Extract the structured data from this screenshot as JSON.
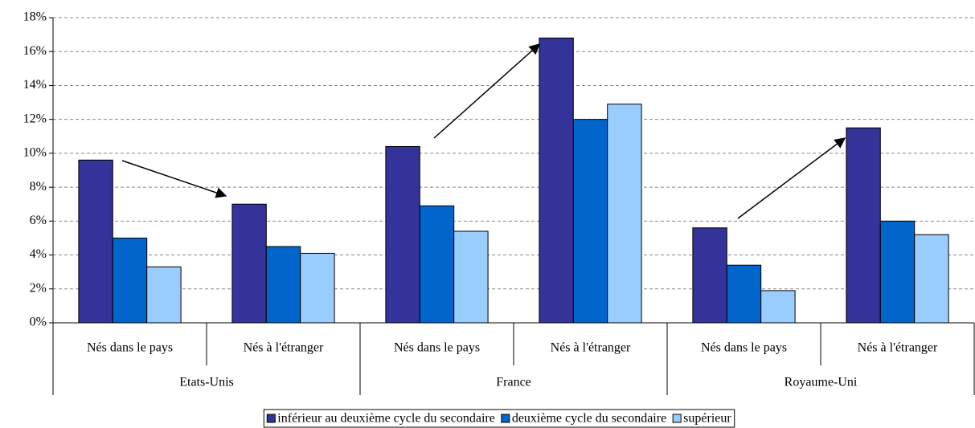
{
  "chart_data": {
    "type": "bar",
    "categories": [
      "Nés dans le pays",
      "Nés à l'étranger",
      "Nés dans le pays",
      "Nés à l'étranger",
      "Nés dans le pays",
      "Nés à l'étranger"
    ],
    "groups": [
      "Etats-Unis",
      "France",
      "Royaume-Uni"
    ],
    "series": [
      {
        "name": "inférieur au deuxième cycle du secondaire",
        "color": "#333399",
        "values": [
          9.6,
          7.0,
          10.4,
          16.8,
          5.6,
          11.5
        ]
      },
      {
        "name": "deuxième cycle du secondaire",
        "color": "#0066cc",
        "values": [
          5.0,
          4.5,
          6.9,
          12.0,
          3.4,
          6.0
        ]
      },
      {
        "name": "supérieur",
        "color": "#99ccff",
        "values": [
          3.3,
          4.1,
          5.4,
          12.9,
          1.9,
          5.2
        ]
      }
    ],
    "ylim": [
      0,
      18
    ],
    "yticks": [
      {
        "value": 0,
        "label": "0%"
      },
      {
        "value": 2,
        "label": "2%"
      },
      {
        "value": 4,
        "label": "4%"
      },
      {
        "value": 6,
        "label": "6%"
      },
      {
        "value": 8,
        "label": "8%"
      },
      {
        "value": 10,
        "label": "10%"
      },
      {
        "value": 12,
        "label": "12%"
      },
      {
        "value": 14,
        "label": "14%"
      },
      {
        "value": 16,
        "label": "16%"
      },
      {
        "value": 18,
        "label": "18%"
      }
    ],
    "grid": true
  }
}
